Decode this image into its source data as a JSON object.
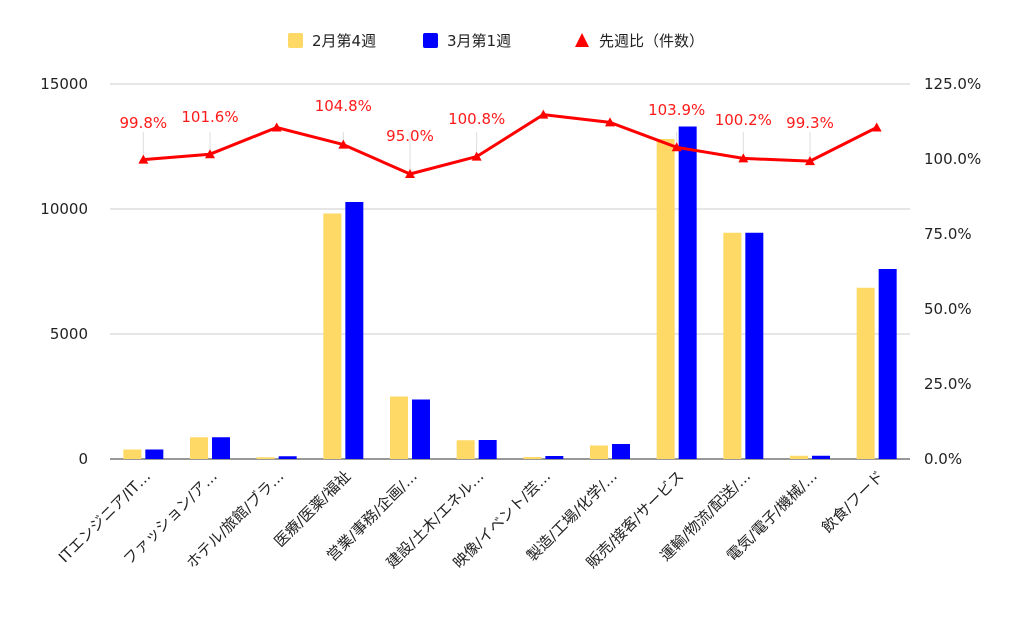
{
  "chart_data": {
    "type": "bar",
    "categories": [
      "ITエンジニア/IT…",
      "ファッション/ア…",
      "ホテル/旅館/ブラ…",
      "医療/医薬/福祉",
      "営業/事務/企画/…",
      "建設/土木/エネル…",
      "映像/イベント/芸…",
      "製造/工場/化学/…",
      "販売/接客/サービス",
      "運輸/物流/配送/…",
      "電気/電子/機械/…",
      "飲食/フード"
    ],
    "series": [
      {
        "name": "2月第4週",
        "color": "#ffd966",
        "axis": "left",
        "values": [
          380,
          870,
          70,
          9820,
          2500,
          750,
          80,
          540,
          12800,
          9050,
          130,
          6850
        ]
      },
      {
        "name": "3月第1週",
        "color": "#0000ff",
        "axis": "left",
        "values": [
          380,
          870,
          110,
          10280,
          2380,
          760,
          120,
          600,
          13300,
          9050,
          130,
          7600
        ]
      },
      {
        "name": "先週比（件数）",
        "color": "#ff0000",
        "axis": "right",
        "kind": "line",
        "values": [
          99.8,
          101.6,
          110.5,
          104.8,
          95.0,
          100.8,
          114.8,
          112.2,
          103.9,
          100.2,
          99.3,
          110.5
        ],
        "data_labels": [
          "99.8%",
          "101.6%",
          "",
          "104.8%",
          "95.0%",
          "100.8%",
          "",
          "",
          "103.9%",
          "100.2%",
          "99.3%",
          ""
        ]
      }
    ],
    "left_axis": {
      "min": 0,
      "max": 15000,
      "ticks": [
        "0",
        "5000",
        "10000",
        "15000"
      ]
    },
    "right_axis": {
      "min": 0,
      "max": 125,
      "ticks": [
        "0.0%",
        "25.0%",
        "50.0%",
        "75.0%",
        "100.0%",
        "125.0%"
      ]
    },
    "grid": true,
    "legend_position": "top-center"
  }
}
